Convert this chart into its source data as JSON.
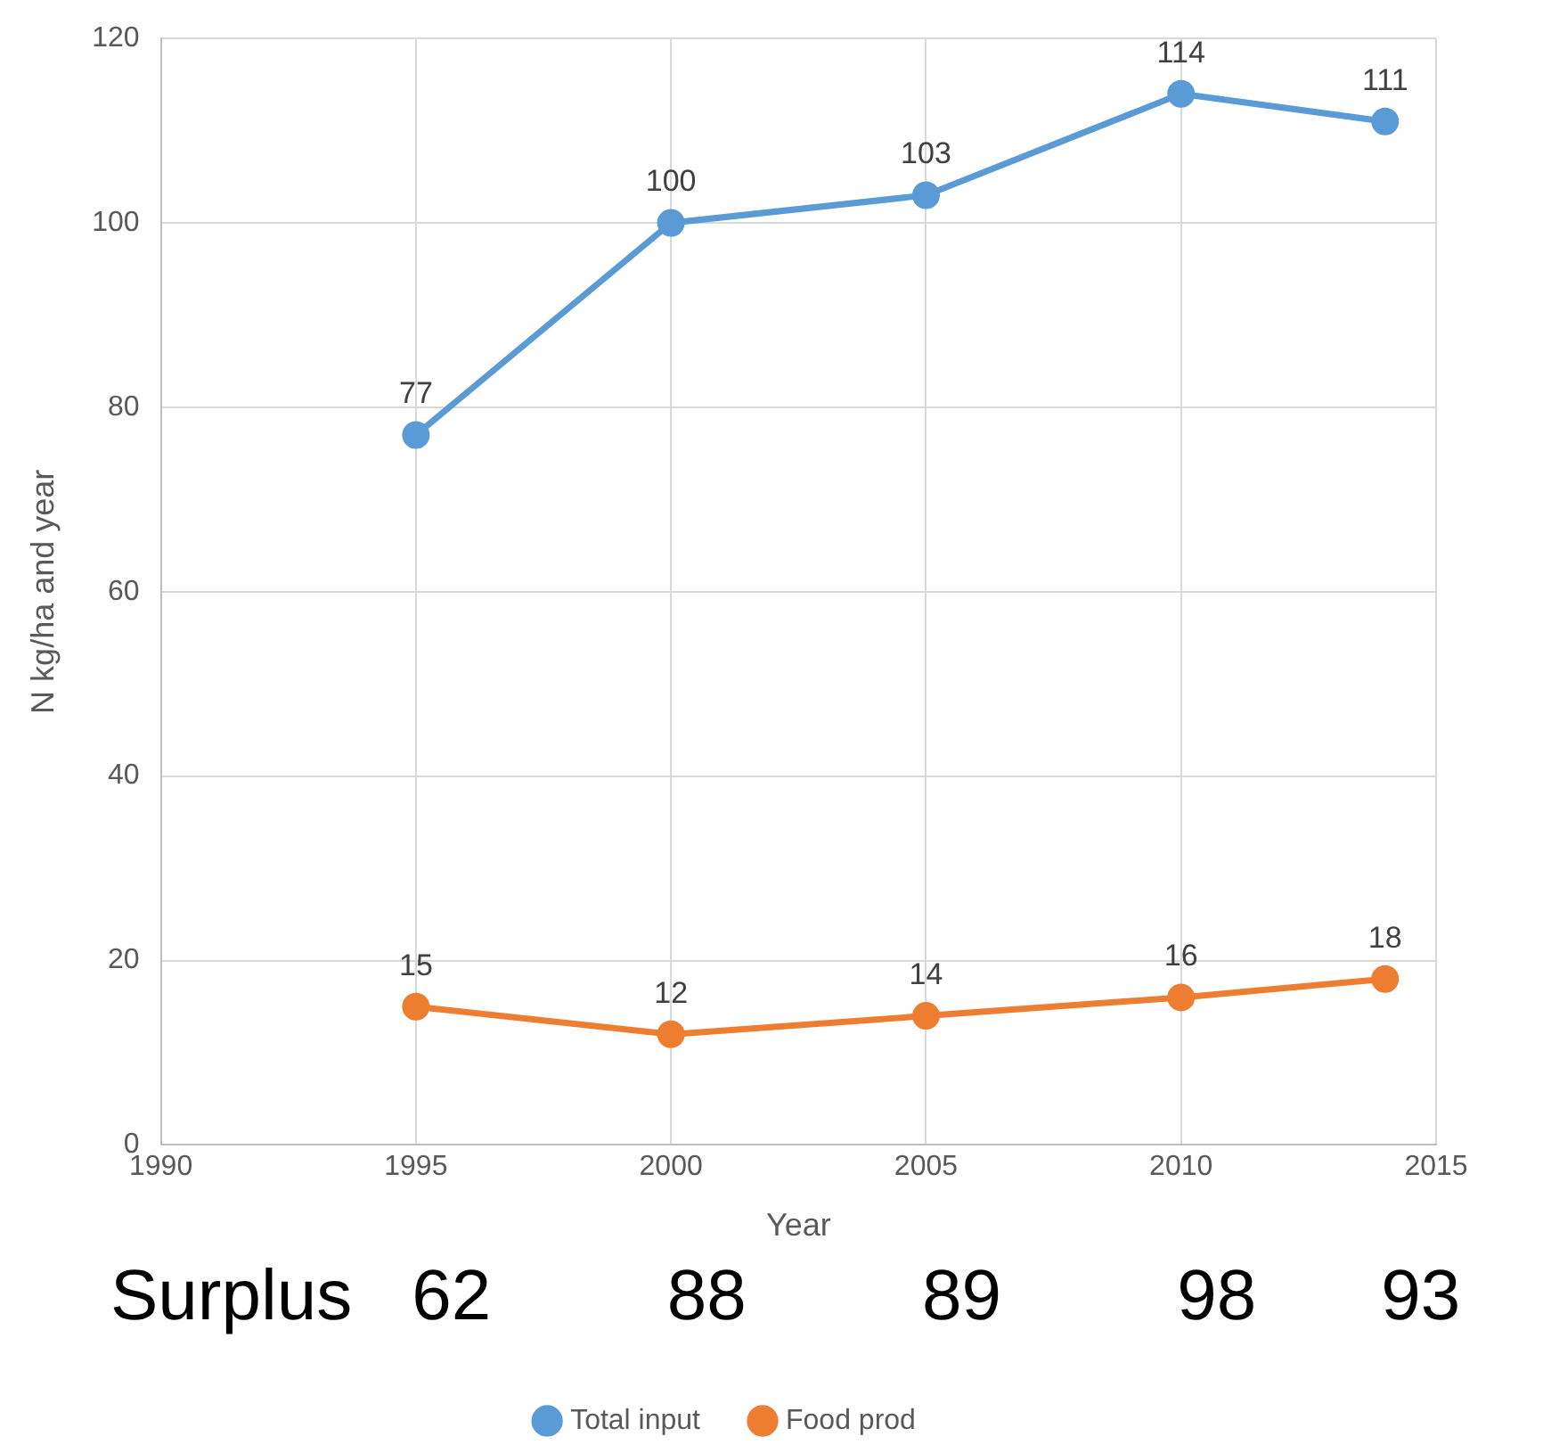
{
  "chart_data": {
    "type": "line",
    "xlabel": "Year",
    "ylabel": "N kg/ha and year",
    "x": [
      1995,
      2000,
      2005,
      2010,
      2014
    ],
    "series": [
      {
        "name": "Total input",
        "color": "#5b9bd5",
        "values": [
          77,
          100,
          103,
          114,
          111
        ]
      },
      {
        "name": "Food prod",
        "color": "#ed7d31",
        "values": [
          15,
          12,
          14,
          16,
          18
        ]
      }
    ],
    "xlim": [
      1990,
      2015
    ],
    "xticks": [
      1990,
      1995,
      2000,
      2005,
      2010,
      2015
    ],
    "ylim": [
      0,
      120
    ],
    "yticks": [
      0,
      20,
      40,
      60,
      80,
      100,
      120
    ],
    "grid": true,
    "legend": "bottom",
    "marker": "circle",
    "line_style": "solid",
    "data_labels": true,
    "annotations": [
      "Surplus",
      "62",
      "88",
      "89",
      "98",
      "93"
    ]
  }
}
